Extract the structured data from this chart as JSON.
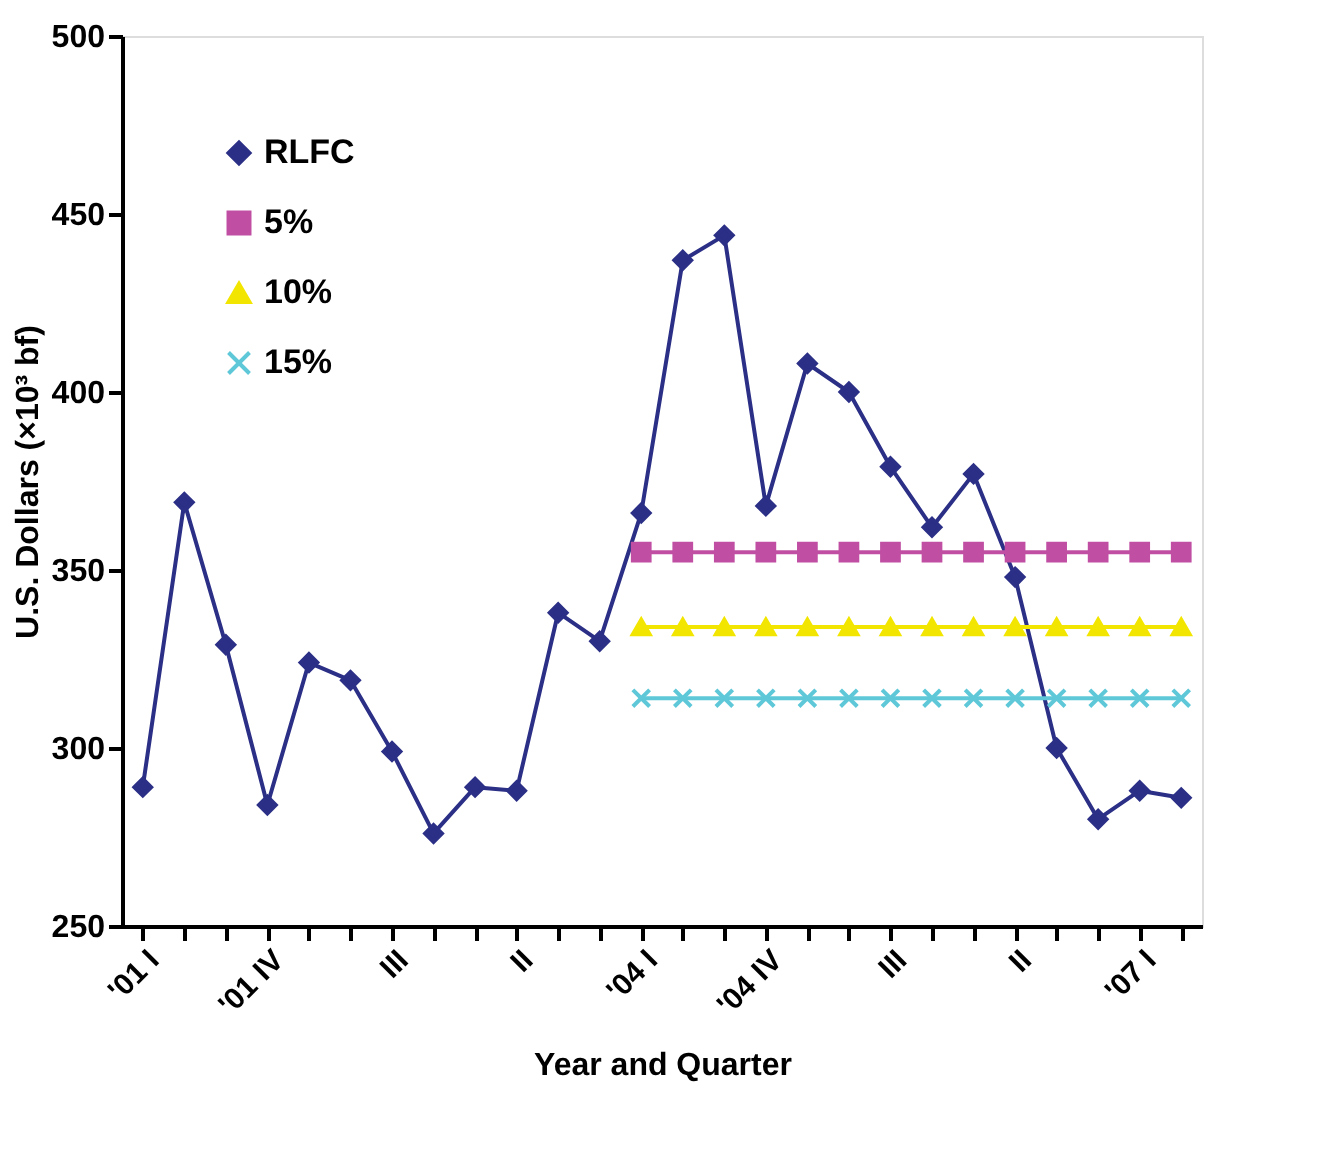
{
  "chart_data": {
    "type": "line",
    "xlabel": "Year and Quarter",
    "ylabel": "U.S. Dollars (×10³ bf)",
    "categories": [
      "'01 I",
      null,
      null,
      "'01 IV",
      null,
      null,
      "III",
      null,
      null,
      "II",
      null,
      null,
      "'04 I",
      null,
      null,
      "'04 IV",
      null,
      null,
      "III",
      null,
      null,
      "II",
      null,
      null,
      "'07 I",
      null
    ],
    "series": [
      {
        "name": "RLFC",
        "color": "#2b2f86",
        "marker": "diamond",
        "values": [
          289,
          369,
          329,
          284,
          324,
          319,
          299,
          276,
          289,
          288,
          338,
          330,
          366,
          437,
          444,
          368,
          408,
          400,
          379,
          362,
          377,
          348,
          300,
          280,
          288,
          286
        ]
      },
      {
        "name": "5%",
        "color": "#c04fa3",
        "marker": "square",
        "values": [
          null,
          null,
          null,
          null,
          null,
          null,
          null,
          null,
          null,
          null,
          null,
          null,
          355,
          355,
          355,
          355,
          355,
          355,
          355,
          355,
          355,
          355,
          355,
          355,
          355,
          355
        ]
      },
      {
        "name": "10%",
        "color": "#f2e600",
        "marker": "triangle",
        "values": [
          null,
          null,
          null,
          null,
          null,
          null,
          null,
          null,
          null,
          null,
          null,
          null,
          334,
          334,
          334,
          334,
          334,
          334,
          334,
          334,
          334,
          334,
          334,
          334,
          334,
          334
        ]
      },
      {
        "name": "15%",
        "color": "#5ec8d8",
        "marker": "cross",
        "values": [
          null,
          null,
          null,
          null,
          null,
          null,
          null,
          null,
          null,
          null,
          null,
          null,
          314,
          314,
          314,
          314,
          314,
          314,
          314,
          314,
          314,
          314,
          314,
          314,
          314,
          314
        ]
      }
    ],
    "ylim": [
      250,
      500
    ],
    "yticks": [
      250,
      300,
      350,
      400,
      450,
      500
    ],
    "grid": false,
    "legend": "top left",
    "line_style": "solid"
  }
}
